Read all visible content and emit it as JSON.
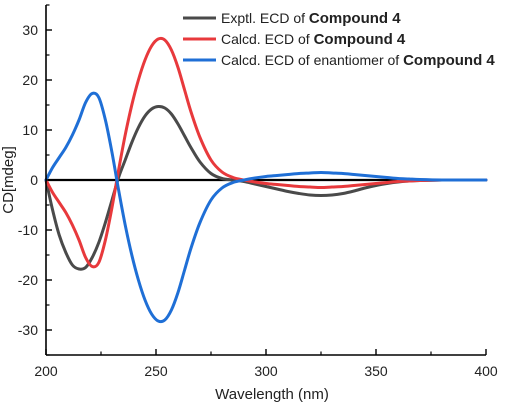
{
  "chart_data": {
    "type": "line",
    "title": "",
    "xlabel": "Wavelength (nm)",
    "ylabel": "CD[mdeg]",
    "xlim": [
      200,
      400
    ],
    "ylim": [
      -35,
      35
    ],
    "x_ticks": [
      200,
      250,
      300,
      350,
      400
    ],
    "y_ticks": [
      -30,
      -20,
      -10,
      0,
      10,
      20,
      30
    ],
    "x_tick_labels": [
      "200",
      "250",
      "300",
      "350",
      "400"
    ],
    "y_tick_labels": [
      "-30",
      "-20",
      "-10",
      "0",
      "10",
      "20",
      "30"
    ],
    "zero_line": true,
    "grid": false,
    "legend_position": "top-right",
    "series": [
      {
        "name": "Exptl. ECD of Compound 4",
        "legend_prefix": "Exptl. ECD of ",
        "legend_compound": "Compound 4",
        "color": "#4a4a4a",
        "x": [
          200,
          203,
          206,
          209,
          212,
          215,
          218,
          221,
          224,
          227,
          230,
          233,
          236,
          239,
          242,
          245,
          248,
          251,
          254,
          257,
          260,
          263,
          266,
          270,
          275,
          280,
          285,
          290,
          295,
          300,
          305,
          310,
          315,
          320,
          325,
          330,
          335,
          340,
          345,
          350,
          355,
          360,
          365,
          370,
          380,
          390,
          400
        ],
        "y": [
          0,
          -6,
          -11,
          -14.5,
          -17,
          -17.8,
          -17.5,
          -15.5,
          -12.5,
          -8.5,
          -4,
          0.5,
          4,
          7.5,
          10.5,
          12.8,
          14.2,
          14.7,
          14.4,
          13.2,
          11.2,
          8.8,
          6.4,
          3.6,
          1.3,
          0.3,
          0,
          -0.3,
          -0.8,
          -1.3,
          -1.8,
          -2.3,
          -2.7,
          -3,
          -3.1,
          -3,
          -2.7,
          -2.2,
          -1.6,
          -1.1,
          -0.7,
          -0.4,
          -0.2,
          -0.1,
          0,
          0,
          0
        ]
      },
      {
        "name": "Calcd. ECD of Compound 4",
        "legend_prefix": "Calcd. ECD of ",
        "legend_compound": "Compound 4",
        "color": "#e8393c",
        "x": [
          200,
          203,
          206,
          209,
          212,
          215,
          218,
          221,
          224,
          227,
          230,
          233,
          236,
          239,
          242,
          245,
          248,
          251,
          254,
          257,
          260,
          263,
          266,
          270,
          275,
          280,
          285,
          290,
          295,
          300,
          305,
          310,
          315,
          320,
          325,
          330,
          335,
          340,
          345,
          350,
          355,
          360,
          365,
          370,
          380,
          390,
          400
        ],
        "y": [
          0,
          -2.5,
          -4.5,
          -6.5,
          -9,
          -12,
          -15.5,
          -17.3,
          -16.5,
          -12,
          -5.5,
          2,
          9,
          15,
          20,
          24,
          26.8,
          28.2,
          28,
          26,
          22.5,
          18,
          13.5,
          8.5,
          4,
          1.6,
          0.5,
          0,
          -0.4,
          -0.7,
          -0.9,
          -1.1,
          -1.3,
          -1.4,
          -1.5,
          -1.4,
          -1.3,
          -1.1,
          -0.9,
          -0.7,
          -0.5,
          -0.3,
          -0.2,
          -0.1,
          0,
          0,
          0
        ]
      },
      {
        "name": "Calcd. ECD of enantiomer of Compound 4",
        "legend_prefix": "Calcd. ECD of enantiomer of ",
        "legend_compound": "Compound 4",
        "color": "#1f6fd6",
        "x": [
          200,
          203,
          206,
          209,
          212,
          215,
          218,
          221,
          224,
          227,
          230,
          233,
          236,
          239,
          242,
          245,
          248,
          251,
          254,
          257,
          260,
          263,
          266,
          270,
          275,
          280,
          285,
          290,
          295,
          300,
          305,
          310,
          315,
          320,
          325,
          330,
          335,
          340,
          345,
          350,
          355,
          360,
          365,
          370,
          380,
          390,
          400
        ],
        "y": [
          0,
          2.5,
          4.5,
          6.5,
          9,
          12,
          15.5,
          17.3,
          16.5,
          12,
          5.5,
          -2,
          -9,
          -15,
          -20,
          -24,
          -26.8,
          -28.2,
          -28,
          -26,
          -22.5,
          -18,
          -13.5,
          -8.5,
          -4,
          -1.6,
          -0.5,
          0,
          0.4,
          0.7,
          0.9,
          1.1,
          1.3,
          1.4,
          1.5,
          1.4,
          1.3,
          1.1,
          0.9,
          0.7,
          0.5,
          0.3,
          0.2,
          0.1,
          0,
          0,
          0
        ]
      }
    ]
  }
}
